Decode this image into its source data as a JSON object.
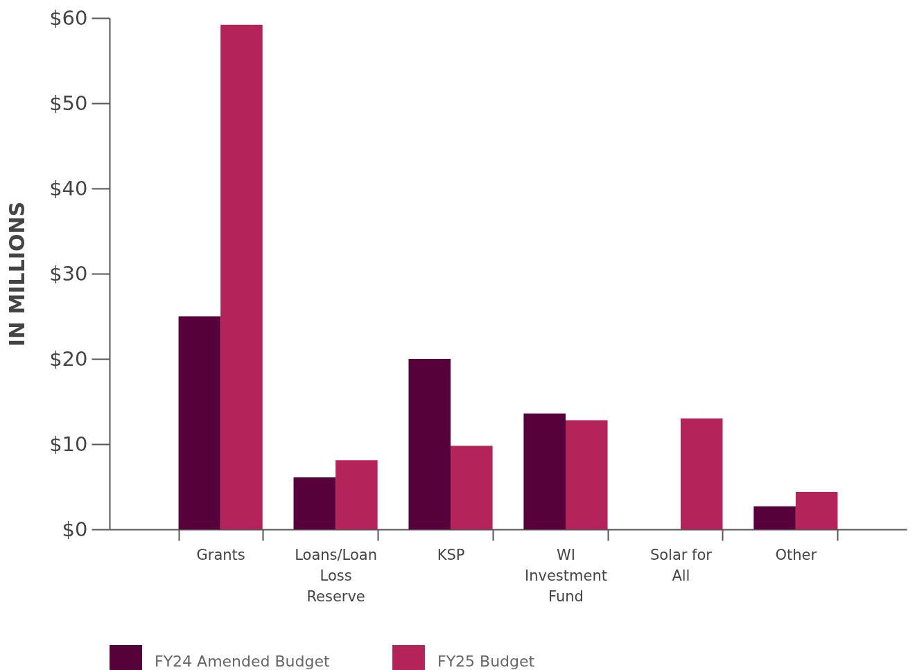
{
  "chart_data": {
    "type": "bar",
    "ylabel": "IN MILLIONS",
    "categories": [
      "Grants",
      "Loans/Loan Loss Reserve",
      "KSP",
      "WI Investment Fund",
      "Solar for All",
      "Other"
    ],
    "series": [
      {
        "name": "FY24 Amended Budget",
        "color": "#56013a",
        "values": [
          25,
          6.1,
          20,
          13.6,
          null,
          2.7
        ]
      },
      {
        "name": "FY25 Budget",
        "color": "#b5235b",
        "values": [
          59.2,
          8.1,
          9.8,
          12.8,
          13,
          4.4
        ]
      }
    ],
    "ylim": [
      0,
      60
    ],
    "yticks": [
      {
        "value": 0,
        "label": "$0"
      },
      {
        "value": 10,
        "label": "$10"
      },
      {
        "value": 20,
        "label": "$20"
      },
      {
        "value": 30,
        "label": "$30"
      },
      {
        "value": 40,
        "label": "$40"
      },
      {
        "value": 50,
        "label": "$50"
      },
      {
        "value": 60,
        "label": "$60"
      }
    ],
    "grid": false,
    "legend": "bottom"
  }
}
